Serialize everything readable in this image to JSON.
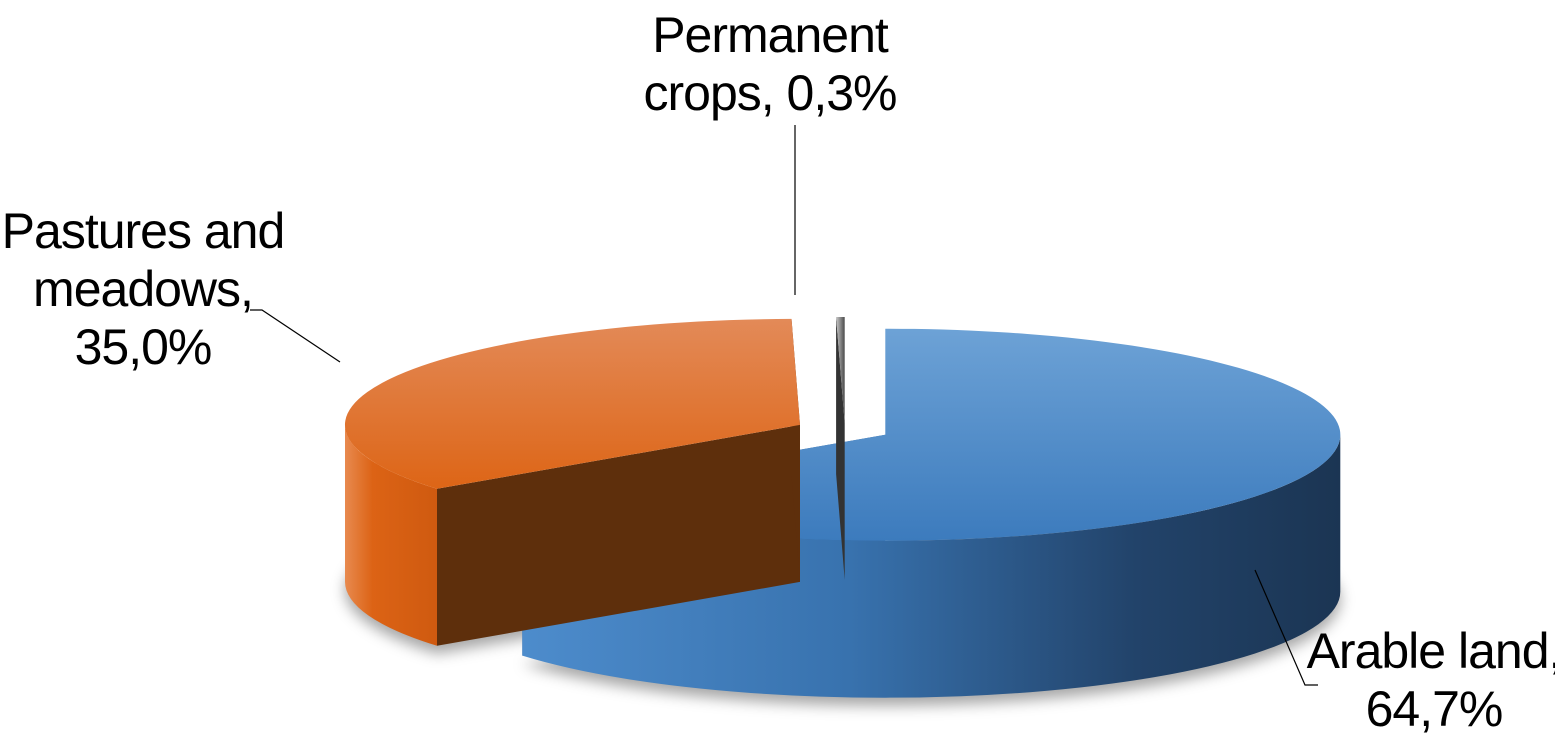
{
  "chart_data": {
    "type": "pie",
    "variant": "3d-exploded",
    "title": "",
    "legend": "none",
    "slices": [
      {
        "name": "Arable land",
        "value": 64.7,
        "value_label": "64,7%",
        "label_lines": [
          "Arable land,",
          "64,7%"
        ],
        "color": "#4a86c5"
      },
      {
        "name": "Pastures and meadows",
        "value": 35.0,
        "value_label": "35,0%",
        "label_lines": [
          "Pastures and",
          "meadows,",
          "35,0%"
        ],
        "color": "#e06a1e"
      },
      {
        "name": "Permanent crops",
        "value": 0.3,
        "value_label": "0,3%",
        "label_lines": [
          "Permanent",
          "crops, 0,3%"
        ],
        "color": "#9a9a9a"
      }
    ]
  }
}
